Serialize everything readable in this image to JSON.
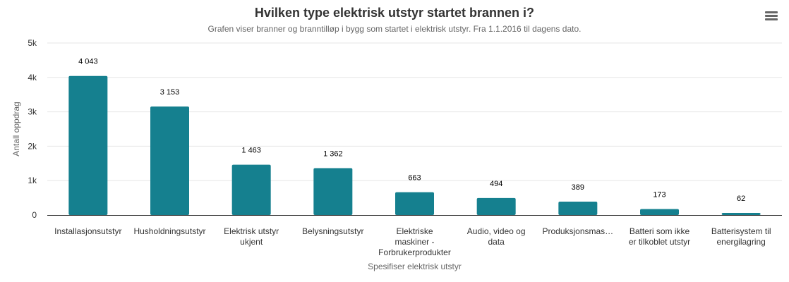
{
  "chart_data": {
    "type": "bar",
    "title": "Hvilken type elektrisk utstyr startet brannen i?",
    "subtitle": "Grafen viser branner og branntilløp i bygg som startet i elektrisk utstyr. Fra 1.1.2016 til dagens dato.",
    "xlabel": "Spesifiser elektrisk utstyr",
    "ylabel": "Antall oppdrag",
    "ylim": [
      0,
      5000
    ],
    "yticks": [
      0,
      1000,
      2000,
      3000,
      4000,
      5000
    ],
    "ytick_labels": [
      "0",
      "1k",
      "2k",
      "3k",
      "4k",
      "5k"
    ],
    "grid": true,
    "bar_color": "#15808f",
    "categories": [
      [
        "Installasjonsutstyr"
      ],
      [
        "Husholdningsutstyr"
      ],
      [
        "Elektrisk utstyr",
        "ukjent"
      ],
      [
        "Belysningsutstyr"
      ],
      [
        "Elektriske",
        "maskiner -",
        "Forbrukerprodukter"
      ],
      [
        "Audio, video og",
        "data"
      ],
      [
        "Produksjonsmas…"
      ],
      [
        "Batteri som ikke",
        "er tilkoblet utstyr"
      ],
      [
        "Batterisystem til",
        "energilagring"
      ]
    ],
    "values": [
      4043,
      3153,
      1463,
      1362,
      663,
      494,
      389,
      173,
      62
    ],
    "value_labels": [
      "4 043",
      "3 153",
      "1 463",
      "1 362",
      "663",
      "494",
      "389",
      "173",
      "62"
    ]
  },
  "menu_icon": "hamburger-menu-icon"
}
